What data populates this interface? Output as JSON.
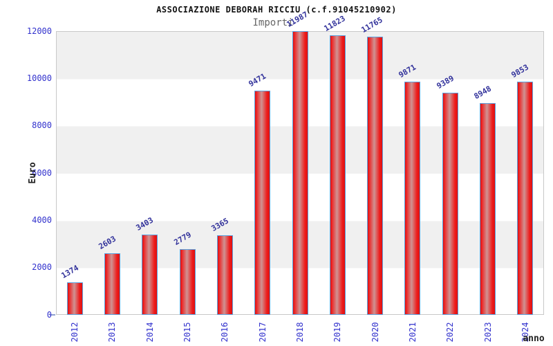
{
  "header": {
    "title": "ASSOCIAZIONE DEBORAH RICCIU (c.f.91045210902)",
    "subtitle": "Importi"
  },
  "chart_data": {
    "type": "bar",
    "title": "ASSOCIAZIONE DEBORAH RICCIU (c.f.91045210902)",
    "subtitle": "Importi",
    "xlabel": "anno",
    "ylabel": "Euro",
    "categories": [
      "2012",
      "2013",
      "2014",
      "2015",
      "2016",
      "2017",
      "2018",
      "2019",
      "2020",
      "2021",
      "2022",
      "2023",
      "2024"
    ],
    "values": [
      1374,
      2603,
      3403,
      2779,
      3365,
      9471,
      11987,
      11823,
      11765,
      9871,
      9389,
      8948,
      9853
    ],
    "ylim": [
      0,
      12000
    ],
    "yticks": [
      0,
      2000,
      4000,
      6000,
      8000,
      10000,
      12000
    ],
    "grid": "horizontal-bands-alternating",
    "legend": "none",
    "bar_labels_rotation_deg": -30,
    "x_labels_rotation_deg": -90,
    "colors": {
      "bar_fill_edge": "#e31515",
      "bar_fill_mid": "#cf9393",
      "bar_border": "#58a2e0",
      "axis_tick_label": "#3232cd",
      "value_label": "#32329b",
      "band_gray": "#f0f0f0",
      "band_white": "#ffffff",
      "plot_border": "#c8c8c8",
      "title_color": "#111111",
      "subtitle_color": "#666666",
      "axis_title_color": "#222222"
    }
  }
}
